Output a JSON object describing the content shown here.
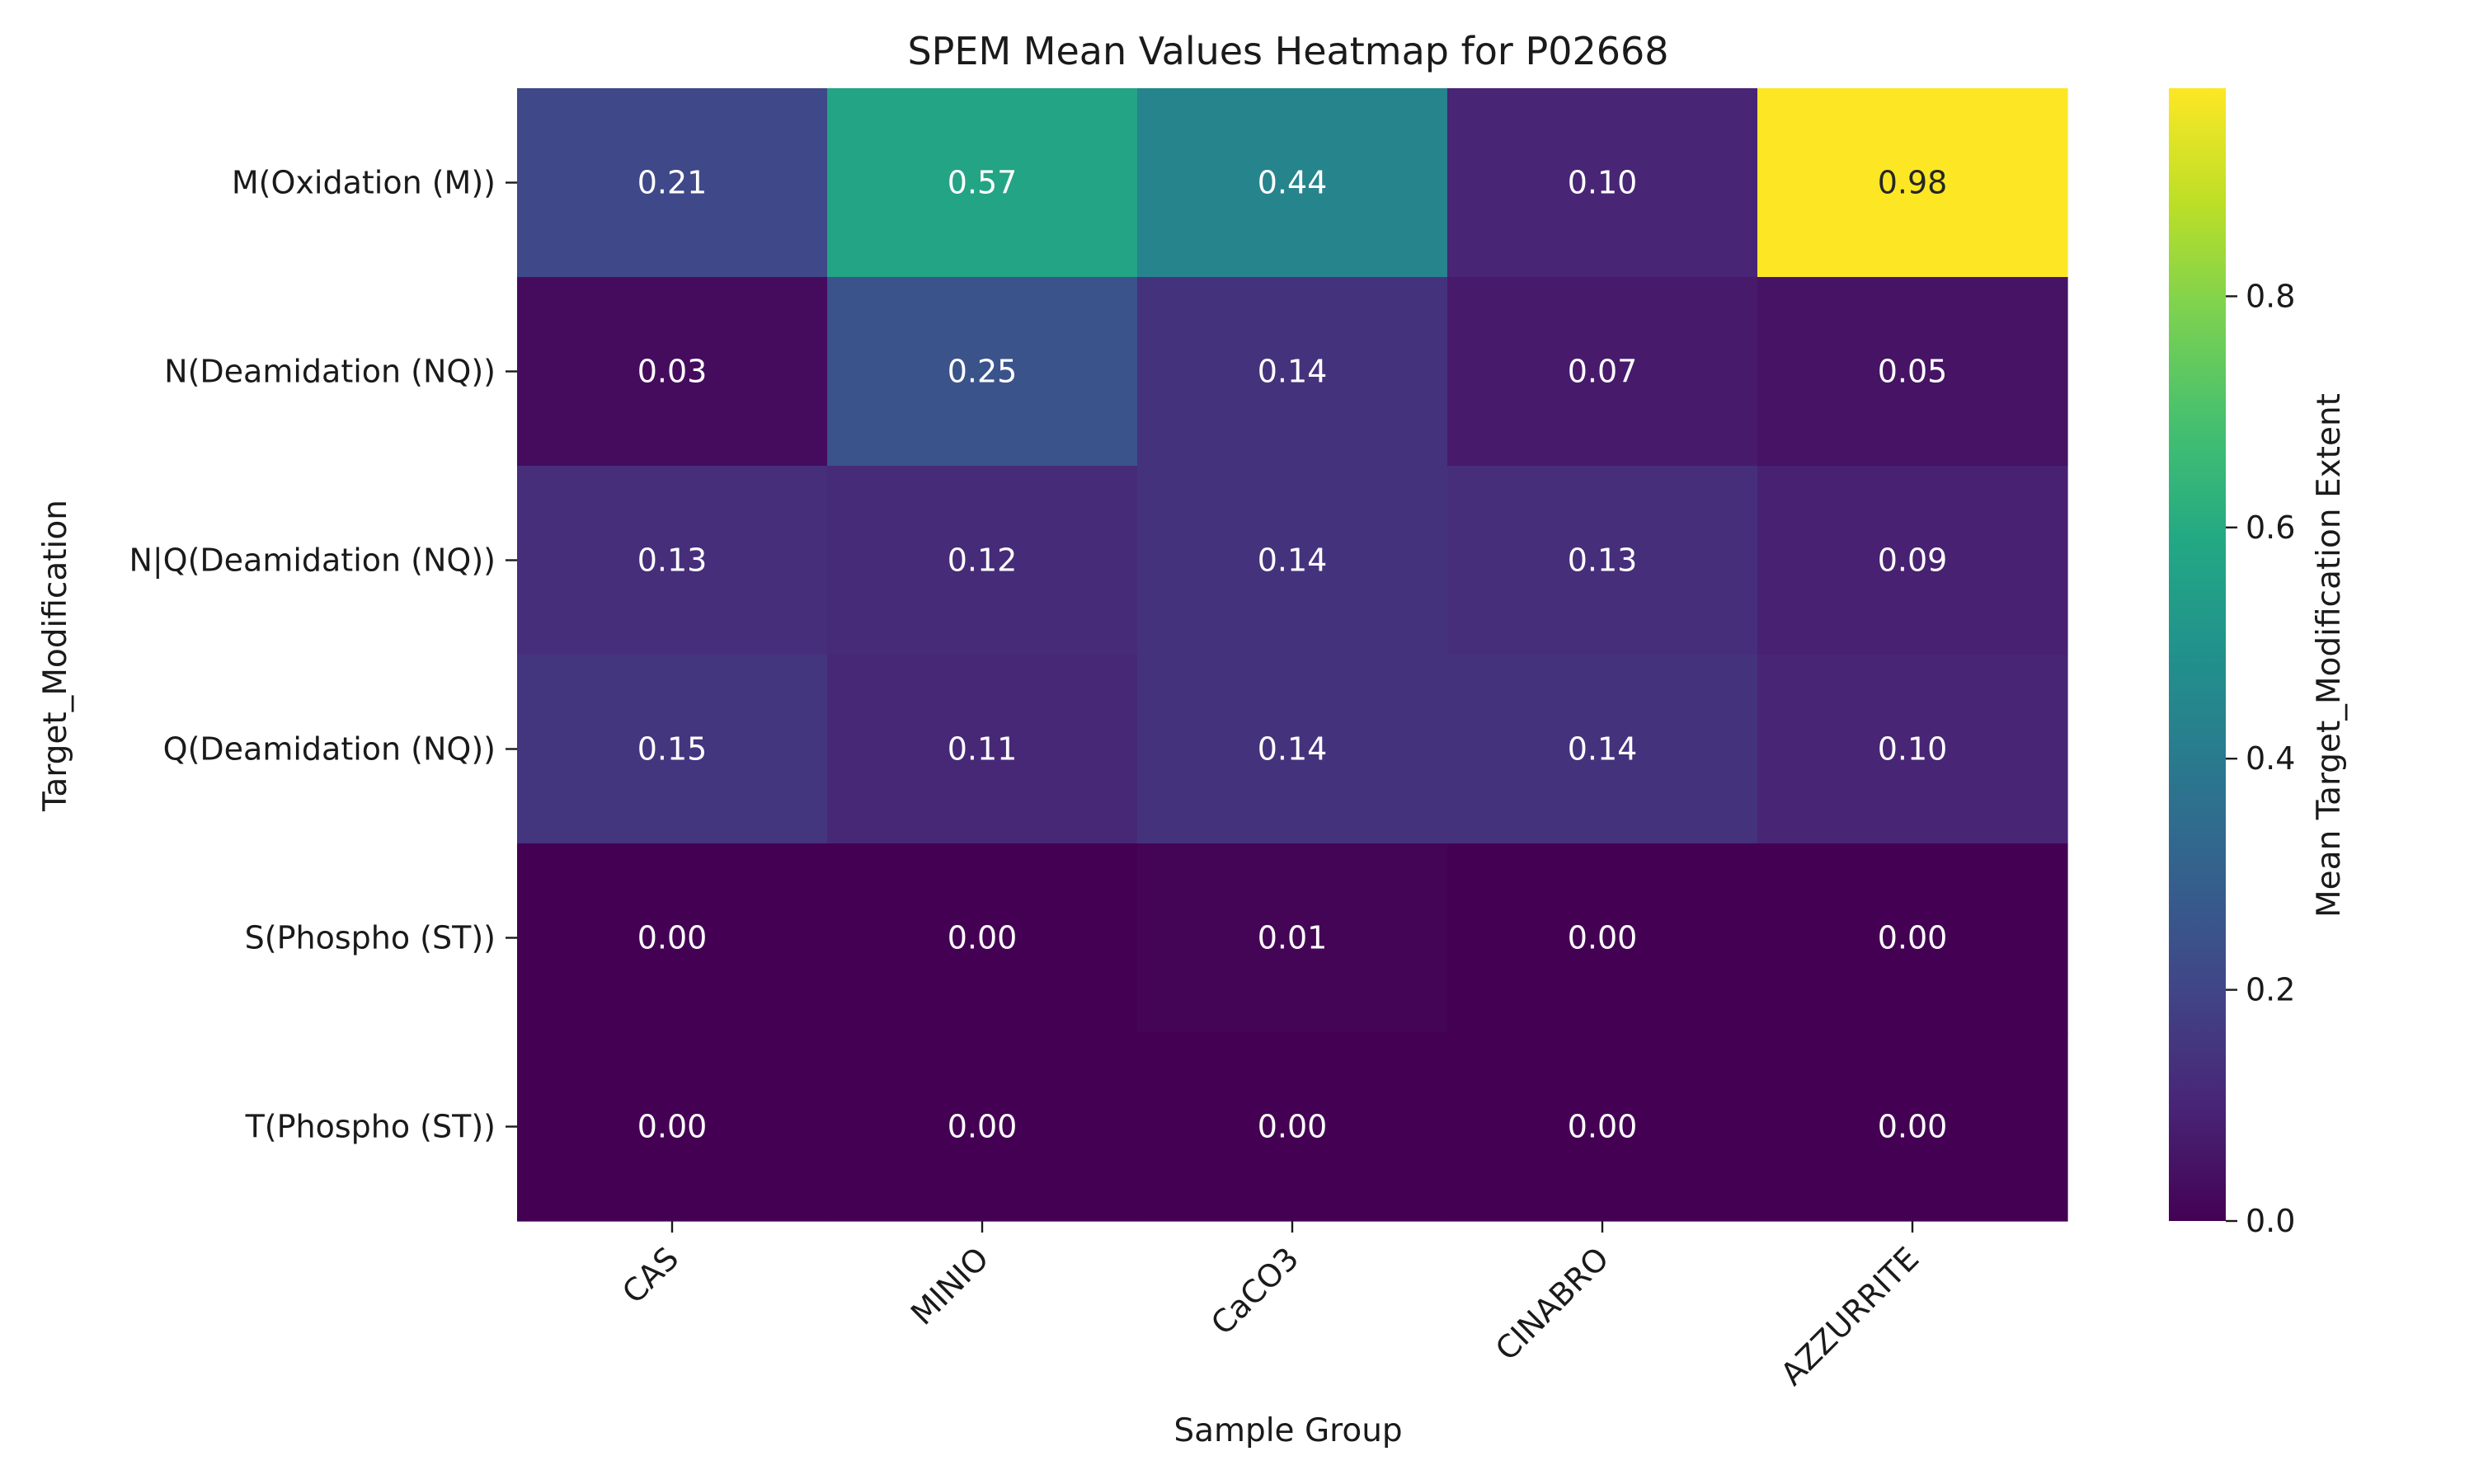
{
  "chart_data": {
    "type": "heatmap",
    "title": "SPEM Mean Values Heatmap for P02668",
    "xlabel": "Sample Group",
    "ylabel": "Target_Modification",
    "colorbar_label": "Mean Target_Modification Extent",
    "colormap": "viridis",
    "clim": [
      0.0,
      0.98
    ],
    "colorbar_ticks": [
      "0.0",
      "0.2",
      "0.4",
      "0.6",
      "0.8"
    ],
    "x_categories": [
      "CAS",
      "MINIO",
      "CaCO3",
      "CINABRO",
      "AZZURRITE"
    ],
    "y_categories": [
      "M(Oxidation (M))",
      "N(Deamidation (NQ))",
      "N|Q(Deamidation (NQ))",
      "Q(Deamidation (NQ))",
      "S(Phospho (ST))",
      "T(Phospho (ST))"
    ],
    "values": [
      [
        0.21,
        0.57,
        0.44,
        0.1,
        0.98
      ],
      [
        0.03,
        0.25,
        0.14,
        0.07,
        0.05
      ],
      [
        0.13,
        0.12,
        0.14,
        0.13,
        0.09
      ],
      [
        0.15,
        0.11,
        0.14,
        0.14,
        0.1
      ],
      [
        0.0,
        0.0,
        0.01,
        0.0,
        0.0
      ],
      [
        0.0,
        0.0,
        0.0,
        0.0,
        0.0
      ]
    ],
    "value_labels": [
      [
        "0.21",
        "0.57",
        "0.44",
        "0.10",
        "0.98"
      ],
      [
        "0.03",
        "0.25",
        "0.14",
        "0.07",
        "0.05"
      ],
      [
        "0.13",
        "0.12",
        "0.14",
        "0.13",
        "0.09"
      ],
      [
        "0.15",
        "0.11",
        "0.14",
        "0.14",
        "0.10"
      ],
      [
        "0.00",
        "0.00",
        "0.01",
        "0.00",
        "0.00"
      ],
      [
        "0.00",
        "0.00",
        "0.00",
        "0.00",
        "0.00"
      ]
    ],
    "annotations": true,
    "grid": false
  }
}
